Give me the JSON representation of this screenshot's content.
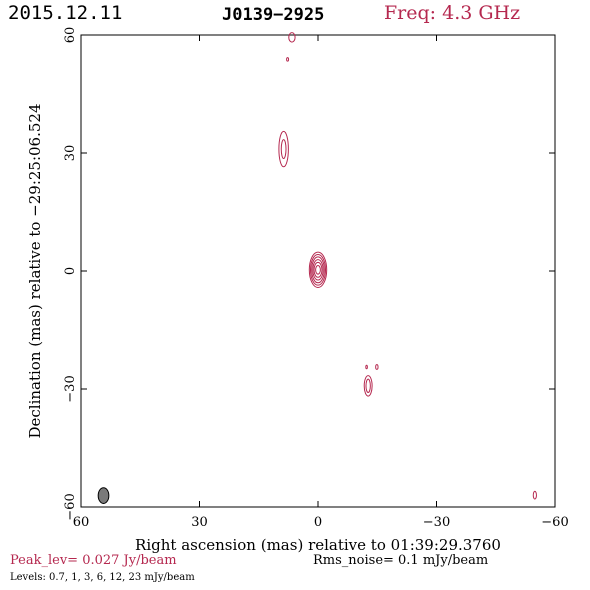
{
  "header": {
    "date": "2015.12.11",
    "source": "J0139−2925",
    "frequency": "Freq: 4.3 GHz"
  },
  "footer": {
    "peak": "Peak_lev=  0.027 Jy/beam",
    "rms": "Rms_noise=  0.1 mJy/beam",
    "levels": "Levels: 0.7,   1,   3,   6,  12,  23 mJy/beam"
  },
  "colors": {
    "contour": "#b5284f",
    "beam": "#7a7a7a",
    "axis": "#000000"
  },
  "chart_data": {
    "type": "contour",
    "xlabel": "Right ascension (mas) relative to 01:39:29.3760",
    "ylabel": "Declination (mas) relative to −29:25:06.524",
    "xlim": [
      60,
      -60
    ],
    "ylim": [
      -60,
      60
    ],
    "xticks": [
      60,
      30,
      0,
      -30,
      -60
    ],
    "yticks": [
      60,
      30,
      0,
      -30,
      -60
    ],
    "xtick_labels": [
      "60",
      "30",
      "0",
      "−30",
      "−60"
    ],
    "ytick_labels": [
      "60",
      "30",
      "0",
      "−30",
      "−60"
    ],
    "contour_levels_mJy": [
      0.7,
      1,
      3,
      6,
      12,
      23
    ],
    "peak_Jy_per_beam": 0.027,
    "rms_mJy_per_beam": 0.1,
    "components": [
      {
        "ra": 0.0,
        "dec": 0.3,
        "levels": [
          0.7,
          1,
          3,
          6,
          12,
          23
        ],
        "semi_ra": [
          2.2,
          1.9,
          1.6,
          1.3,
          1.0,
          0.6
        ],
        "semi_dec": [
          4.5,
          3.9,
          3.3,
          2.6,
          1.9,
          1.1
        ]
      },
      {
        "ra": 8.7,
        "dec": 31.0,
        "levels": [
          0.7,
          1
        ],
        "semi_ra": [
          1.2,
          0.6
        ],
        "semi_dec": [
          4.5,
          2.4
        ]
      },
      {
        "ra": 6.6,
        "dec": 59.4,
        "levels": [
          0.7
        ],
        "semi_ra": [
          0.8
        ],
        "semi_dec": [
          1.2
        ]
      },
      {
        "ra": 7.7,
        "dec": 53.8,
        "levels": [
          0.7
        ],
        "semi_ra": [
          0.25
        ],
        "semi_dec": [
          0.45
        ]
      },
      {
        "ra": -12.7,
        "dec": -29.2,
        "levels": [
          0.7,
          1
        ],
        "semi_ra": [
          1.0,
          0.55
        ],
        "semi_dec": [
          2.6,
          1.7
        ]
      },
      {
        "ra": -12.3,
        "dec": -24.4,
        "levels": [
          0.7
        ],
        "semi_ra": [
          0.2
        ],
        "semi_dec": [
          0.45
        ]
      },
      {
        "ra": -14.9,
        "dec": -24.4,
        "levels": [
          0.7
        ],
        "semi_ra": [
          0.3
        ],
        "semi_dec": [
          0.6
        ]
      },
      {
        "ra": -54.9,
        "dec": -57.0,
        "levels": [
          0.7
        ],
        "semi_ra": [
          0.4
        ],
        "semi_dec": [
          1.0
        ]
      }
    ],
    "beam": {
      "ra": 54.3,
      "dec": -57.1,
      "semi_ra": 0.9,
      "semi_dec": 2.0
    }
  }
}
